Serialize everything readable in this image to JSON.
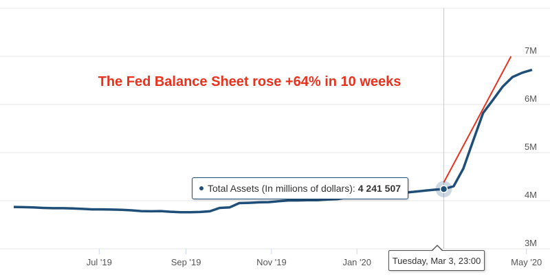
{
  "chart_data": {
    "type": "line",
    "annotation": "The Fed Balance Sheet rose +64% in 10 weeks",
    "x_tick_labels": [
      "Jul '19",
      "Sep '19",
      "Nov '19",
      "Jan '20",
      "May '20"
    ],
    "y_tick_labels": [
      "3M",
      "4M",
      "5M",
      "6M",
      "7M"
    ],
    "ylim": [
      3000000,
      7000000
    ],
    "grid": true,
    "series": [
      {
        "color": "#1f4e79",
        "x": [
          "2019-05-01",
          "2019-05-08",
          "2019-05-15",
          "2019-05-22",
          "2019-05-29",
          "2019-06-05",
          "2019-06-12",
          "2019-06-19",
          "2019-06-26",
          "2019-07-03",
          "2019-07-10",
          "2019-07-17",
          "2019-07-24",
          "2019-07-31",
          "2019-08-07",
          "2019-08-14",
          "2019-08-21",
          "2019-08-28",
          "2019-09-04",
          "2019-09-11",
          "2019-09-18",
          "2019-09-25",
          "2019-10-02",
          "2019-10-09",
          "2019-10-16",
          "2019-10-23",
          "2019-10-30",
          "2019-11-06",
          "2019-11-13",
          "2019-11-20",
          "2019-11-27",
          "2019-12-04",
          "2019-12-11",
          "2019-12-18",
          "2019-12-25",
          "2020-01-01",
          "2020-01-08",
          "2020-01-15",
          "2020-01-22",
          "2020-01-29",
          "2020-02-05",
          "2020-02-12",
          "2020-02-19",
          "2020-02-26",
          "2020-03-03",
          "2020-03-10",
          "2020-03-17",
          "2020-03-24",
          "2020-03-31",
          "2020-04-07",
          "2020-04-14",
          "2020-04-21",
          "2020-04-28",
          "2020-05-05"
        ],
        "values": [
          3870000,
          3865000,
          3860000,
          3850000,
          3845000,
          3845000,
          3840000,
          3830000,
          3820000,
          3820000,
          3815000,
          3810000,
          3800000,
          3785000,
          3780000,
          3785000,
          3770000,
          3760000,
          3760000,
          3765000,
          3780000,
          3850000,
          3860000,
          3950000,
          3955000,
          3965000,
          3970000,
          3990000,
          4005000,
          4005000,
          4010000,
          4010000,
          4025000,
          4035000,
          4065000,
          4090000,
          4115000,
          4135000,
          4150000,
          4160000,
          4170000,
          4190000,
          4210000,
          4230000,
          4241507,
          4300000,
          4670000,
          5250000,
          5820000,
          6090000,
          6370000,
          6570000,
          6660000,
          6720000
        ]
      }
    ],
    "highlight": {
      "label": "Total Assets (In millions of dollars):",
      "value": "4 241 507",
      "date_label": "Tuesday, Mar 3, 23:00",
      "x": "2020-03-03",
      "y": 4241507
    },
    "trend_line": {
      "color": "#e8321e",
      "from": {
        "x": "2020-03-03",
        "y": 4380000
      },
      "to": {
        "x": "2020-04-20",
        "y": 7000000
      }
    },
    "colors": {
      "annotation": "#e8321e",
      "line": "#1f4e79"
    }
  }
}
